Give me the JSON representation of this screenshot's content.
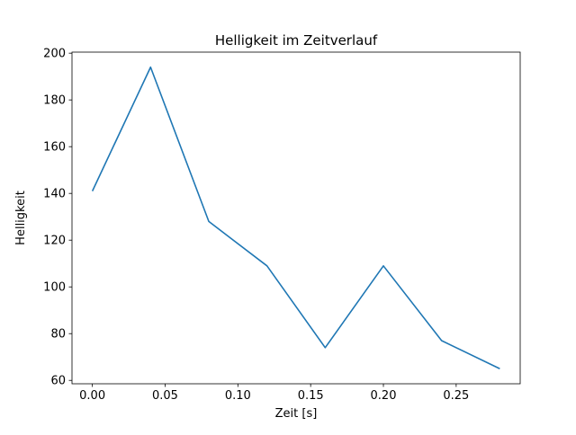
{
  "chart_data": {
    "type": "line",
    "title": "Helligkeit im Zeitverlauf",
    "xlabel": "Zeit [s]",
    "ylabel": "Helligkeit",
    "x": [
      0.0,
      0.04,
      0.08,
      0.12,
      0.16,
      0.2,
      0.24,
      0.28
    ],
    "y": [
      141,
      194,
      128,
      109,
      74,
      109,
      77,
      65
    ],
    "series": [
      {
        "name": "Helligkeit",
        "x": [
          0.0,
          0.04,
          0.08,
          0.12,
          0.16,
          0.2,
          0.24,
          0.28
        ],
        "values": [
          141,
          194,
          128,
          109,
          74,
          109,
          77,
          65
        ]
      }
    ],
    "xlim": [
      -0.014,
      0.294
    ],
    "ylim": [
      58.55,
      200.45
    ],
    "x_ticks": [
      0.0,
      0.05,
      0.1,
      0.15,
      0.2,
      0.25
    ],
    "x_tick_labels": [
      "0.00",
      "0.05",
      "0.10",
      "0.15",
      "0.20",
      "0.25"
    ],
    "y_ticks": [
      60,
      80,
      100,
      120,
      140,
      160,
      180,
      200
    ],
    "y_tick_labels": [
      "60",
      "80",
      "100",
      "120",
      "140",
      "160",
      "180",
      "200"
    ],
    "line_color": "#1f77b4",
    "grid": false,
    "legend": "none",
    "background_color": "#ffffff"
  }
}
